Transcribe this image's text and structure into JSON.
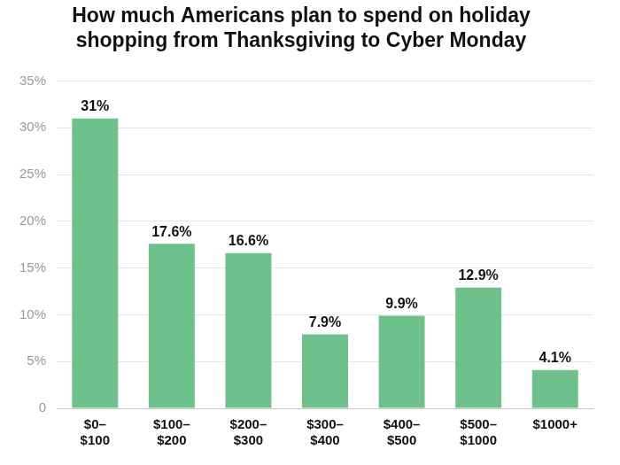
{
  "chart_data": {
    "type": "bar",
    "title": "How much Americans plan to spend on holiday shopping from Thanksgiving to Cyber Monday",
    "categories": [
      "$0–$100",
      "$100–$200",
      "$200–$300",
      "$300–$400",
      "$400–$500",
      "$500–$1000",
      "$1000+"
    ],
    "values": [
      31,
      17.6,
      16.6,
      7.9,
      9.9,
      12.9,
      4.1
    ],
    "value_labels": [
      "31%",
      "17.6%",
      "16.6%",
      "7.9%",
      "9.9%",
      "12.9%",
      "4.1%"
    ],
    "data_labels": true,
    "color": "#6ec18a",
    "ylim": [
      0,
      35
    ],
    "yticks": [
      0,
      {
        "value": 5,
        "label": "5%"
      },
      {
        "value": 10,
        "label": "10%"
      },
      {
        "value": 15,
        "label": "15%"
      },
      {
        "value": 20,
        "label": "20%"
      },
      {
        "value": 25,
        "label": "25%"
      },
      {
        "value": 30,
        "label": "30%"
      },
      {
        "value": 35,
        "label": "35%"
      }
    ],
    "grid": true
  }
}
